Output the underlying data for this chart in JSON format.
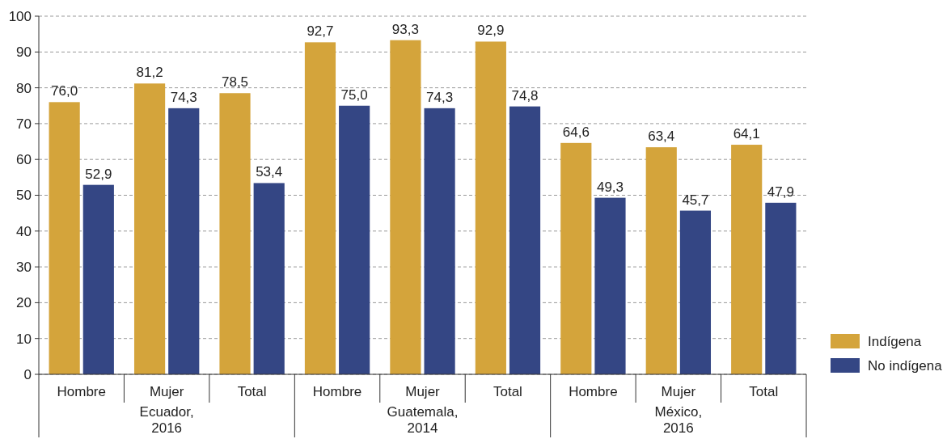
{
  "chart_data": {
    "type": "bar",
    "categories": [
      "Hombre",
      "Mujer",
      "Total",
      "Hombre",
      "Mujer",
      "Total",
      "Hombre",
      "Mujer",
      "Total"
    ],
    "series": [
      {
        "name": "Indígena",
        "color": "#d4a43b",
        "values": [
          76.0,
          81.2,
          78.5,
          92.7,
          93.3,
          92.9,
          64.6,
          63.4,
          64.1
        ],
        "value_labels": [
          "76,0",
          "81,2",
          "78,5",
          "92,7",
          "93,3",
          "92,9",
          "64,6",
          "63,4",
          "64,1"
        ]
      },
      {
        "name": "No indígena",
        "color": "#344684",
        "values": [
          52.9,
          74.3,
          53.4,
          75.0,
          74.3,
          74.8,
          49.3,
          45.7,
          47.9
        ],
        "value_labels": [
          "52,9",
          "74,3",
          "53,4",
          "75,0",
          "74,3",
          "74,8",
          "49,3",
          "45,7",
          "47,9"
        ]
      }
    ],
    "annotations": [
      "Ecuador,\n2016",
      "Guatemala,\n2014",
      "México,\n2016"
    ],
    "ylim": [
      0,
      100
    ],
    "yticks": [
      0,
      10,
      20,
      30,
      40,
      50,
      60,
      70,
      80,
      90,
      100
    ],
    "grid": "y",
    "legend": "bottom right"
  }
}
